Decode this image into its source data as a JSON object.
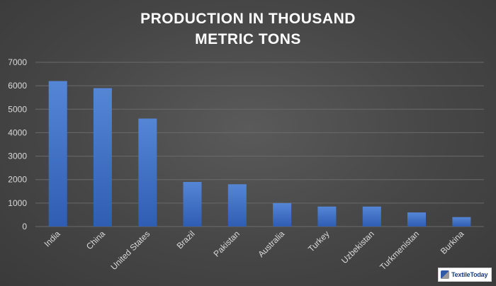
{
  "chart_data": {
    "type": "bar",
    "title": "PRODUCTION IN THOUSAND\nMETRIC TONS",
    "title_lines": [
      "PRODUCTION IN THOUSAND",
      "METRIC TONS"
    ],
    "categories": [
      "India",
      "China",
      "United States",
      "Brazil",
      "Pakistan",
      "Australia",
      "Turkey",
      "Uzbekistan",
      "Turkmenistan",
      "Burkina"
    ],
    "values": [
      6200,
      5900,
      4600,
      1900,
      1800,
      1000,
      850,
      850,
      600,
      400
    ],
    "ylim": [
      0,
      7000
    ],
    "yticks": [
      0,
      1000,
      2000,
      3000,
      4000,
      5000,
      6000,
      7000
    ],
    "xlabel": "",
    "ylabel": "",
    "grid": true,
    "legend": "none",
    "bar_color": "#4472c4",
    "background_color": "#474747"
  },
  "logo": {
    "text": "TextileToday"
  }
}
